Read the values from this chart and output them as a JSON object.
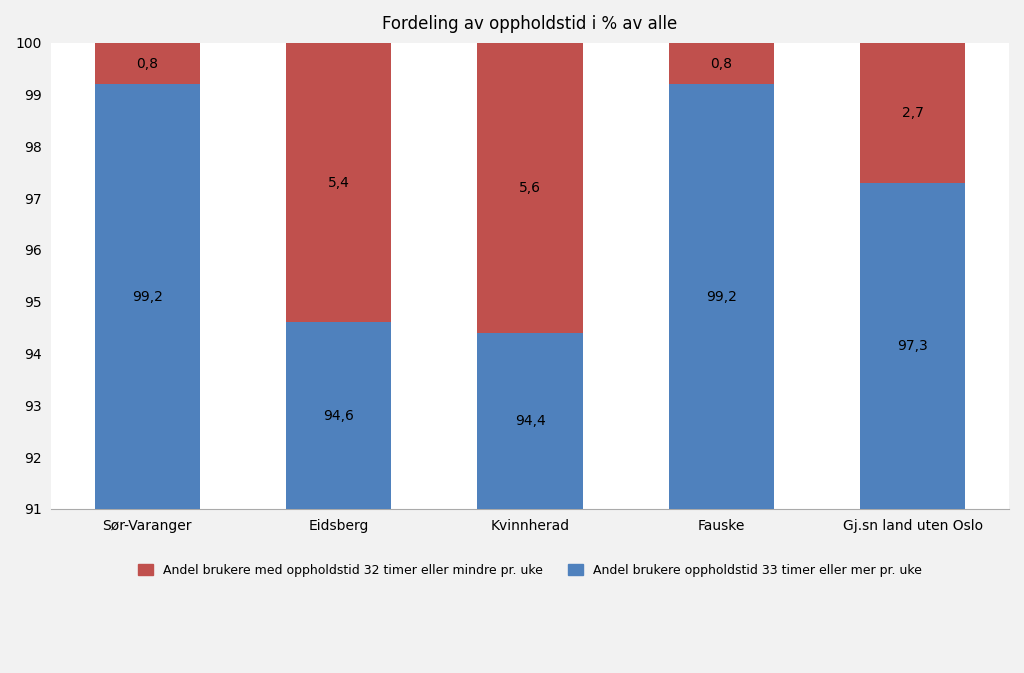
{
  "categories": [
    "Sør-Varanger",
    "Eidsberg",
    "Kvinnherad",
    "Fauske",
    "Gj.sn land uten Oslo"
  ],
  "blue_values": [
    99.2,
    94.6,
    94.4,
    99.2,
    97.3
  ],
  "red_values": [
    0.8,
    5.4,
    5.6,
    0.8,
    2.7
  ],
  "blue_labels": [
    "99,2",
    "94,6",
    "94,4",
    "99,2",
    "97,3"
  ],
  "red_labels": [
    "0,8",
    "5,4",
    "5,6",
    "0,8",
    "2,7"
  ],
  "blue_color": "#4F81BD",
  "red_color": "#C0504D",
  "title": "Fordeling av oppholdstid i % av alle",
  "ylim_min": 91,
  "ylim_max": 100,
  "yticks": [
    91,
    92,
    93,
    94,
    95,
    96,
    97,
    98,
    99,
    100
  ],
  "legend_red": "Andel brukere med oppholdstid 32 timer eller mindre pr. uke",
  "legend_blue": "Andel brukere oppholdstid 33 timer eller mer pr. uke",
  "bar_width": 0.55,
  "title_fontsize": 12,
  "label_fontsize": 10,
  "tick_fontsize": 10,
  "legend_fontsize": 9,
  "background_color": "#F2F2F2",
  "plot_bg_color": "#FFFFFF",
  "grid_color": "#FFFFFF"
}
